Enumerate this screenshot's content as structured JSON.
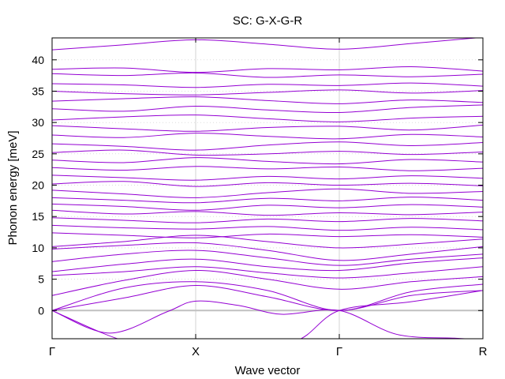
{
  "chart_data": {
    "type": "line",
    "title": "SC: G-X-G-R",
    "xlabel": "Wave vector",
    "ylabel": "Phonon energy [meV]",
    "ylim": [
      -4.5,
      43.5
    ],
    "y_ticks": [
      0,
      5,
      10,
      15,
      20,
      25,
      30,
      35,
      40
    ],
    "x_ticks": [
      "Γ",
      "X",
      "Γ",
      "R"
    ],
    "x_tick_positions": [
      0,
      1,
      2,
      3
    ],
    "xlim": [
      0,
      3
    ],
    "grid": true,
    "legend": "none",
    "line_color": "#9400d3",
    "zero_line_color": "#c0c0c0",
    "grid_color": "#c8c8c8",
    "series_note": "",
    "series": [
      {
        "x": [
          0,
          0.5,
          1,
          1.5,
          2,
          2.5,
          3
        ],
        "values": [
          41.6,
          42.4,
          43.2,
          42.5,
          41.7,
          42.6,
          43.6
        ]
      },
      {
        "x": [
          0,
          0.5,
          1,
          1.5,
          2,
          2.5,
          3
        ],
        "values": [
          38.5,
          38.7,
          38.0,
          38.6,
          38.4,
          38.9,
          38.2
        ]
      },
      {
        "x": [
          0,
          0.5,
          1,
          1.5,
          2,
          2.5,
          3
        ],
        "values": [
          37.8,
          37.5,
          37.9,
          37.2,
          37.6,
          37.3,
          37.7
        ]
      },
      {
        "x": [
          0,
          0.5,
          1,
          1.5,
          2,
          2.5,
          3
        ],
        "values": [
          36.2,
          36.0,
          35.6,
          36.1,
          35.9,
          36.3,
          35.8
        ]
      },
      {
        "x": [
          0,
          0.5,
          1,
          1.5,
          2,
          2.5,
          3
        ],
        "values": [
          35.0,
          34.6,
          34.4,
          34.8,
          35.2,
          34.7,
          35.1
        ]
      },
      {
        "x": [
          0,
          0.5,
          1,
          1.5,
          2,
          2.5,
          3
        ],
        "values": [
          33.4,
          33.8,
          34.1,
          33.5,
          33.0,
          33.6,
          33.2
        ]
      },
      {
        "x": [
          0,
          0.5,
          1,
          1.5,
          2,
          2.5,
          3
        ],
        "values": [
          32.2,
          31.8,
          32.6,
          32.0,
          31.6,
          32.4,
          32.8
        ]
      },
      {
        "x": [
          0,
          0.5,
          1,
          1.5,
          2,
          2.5,
          3
        ],
        "values": [
          30.4,
          30.9,
          31.2,
          30.6,
          30.1,
          30.7,
          31.0
        ]
      },
      {
        "x": [
          0,
          0.5,
          1,
          1.5,
          2,
          2.5,
          3
        ],
        "values": [
          29.5,
          29.0,
          28.6,
          29.2,
          29.4,
          28.8,
          29.6
        ]
      },
      {
        "x": [
          0,
          0.5,
          1,
          1.5,
          2,
          2.5,
          3
        ],
        "values": [
          28.0,
          27.6,
          28.3,
          27.8,
          27.4,
          28.1,
          27.7
        ]
      },
      {
        "x": [
          0,
          0.5,
          1,
          1.5,
          2,
          2.5,
          3
        ],
        "values": [
          26.6,
          26.2,
          25.6,
          26.4,
          26.9,
          26.3,
          26.8
        ]
      },
      {
        "x": [
          0,
          0.5,
          1,
          1.5,
          2,
          2.5,
          3
        ],
        "values": [
          25.2,
          25.6,
          24.8,
          25.0,
          25.4,
          24.9,
          25.3
        ]
      },
      {
        "x": [
          0,
          0.5,
          1,
          1.5,
          2,
          2.5,
          3
        ],
        "values": [
          24.0,
          23.6,
          24.4,
          23.8,
          23.4,
          24.1,
          23.7
        ]
      },
      {
        "x": [
          0,
          0.5,
          1,
          1.5,
          2,
          2.5,
          3
        ],
        "values": [
          22.8,
          22.4,
          23.0,
          22.6,
          22.9,
          22.3,
          22.7
        ]
      },
      {
        "x": [
          0,
          0.5,
          1,
          1.5,
          2,
          2.5,
          3
        ],
        "values": [
          21.6,
          21.2,
          20.8,
          21.4,
          21.0,
          21.5,
          21.1
        ]
      },
      {
        "x": [
          0,
          0.5,
          1,
          1.5,
          2,
          2.5,
          3
        ],
        "values": [
          20.2,
          20.6,
          19.8,
          20.4,
          20.0,
          20.3,
          19.9
        ]
      },
      {
        "x": [
          0,
          0.5,
          1,
          1.5,
          2,
          2.5,
          3
        ],
        "values": [
          19.2,
          18.6,
          18.0,
          18.8,
          19.4,
          18.7,
          19.0
        ]
      },
      {
        "x": [
          0,
          0.5,
          1,
          1.5,
          2,
          2.5,
          3
        ],
        "values": [
          18.0,
          17.6,
          17.2,
          17.9,
          17.5,
          18.1,
          17.6
        ]
      },
      {
        "x": [
          0,
          0.5,
          1,
          1.5,
          2,
          2.5,
          3
        ],
        "values": [
          17.0,
          16.6,
          16.0,
          16.8,
          16.4,
          16.9,
          16.5
        ]
      },
      {
        "x": [
          0,
          0.5,
          1,
          1.5,
          2,
          2.5,
          3
        ],
        "values": [
          16.0,
          15.4,
          15.8,
          15.2,
          15.6,
          15.3,
          15.7
        ]
      },
      {
        "x": [
          0,
          0.5,
          1,
          1.5,
          2,
          2.5,
          3
        ],
        "values": [
          14.8,
          14.4,
          14.0,
          14.6,
          14.2,
          14.7,
          14.3
        ]
      },
      {
        "x": [
          0,
          0.5,
          1,
          1.5,
          2,
          2.5,
          3
        ],
        "values": [
          13.6,
          13.2,
          13.0,
          13.4,
          12.8,
          13.3,
          12.9
        ]
      },
      {
        "x": [
          0,
          0.5,
          1,
          1.5,
          2,
          2.5,
          3
        ],
        "values": [
          12.4,
          12.0,
          11.6,
          12.2,
          11.8,
          12.1,
          11.7
        ]
      },
      {
        "x": [
          0,
          0.5,
          1,
          1.5,
          2,
          2.5,
          3
        ],
        "values": [
          10.2,
          11.0,
          12.0,
          11.0,
          10.0,
          10.6,
          11.4
        ]
      },
      {
        "x": [
          0,
          0.5,
          1,
          1.5,
          2,
          2.5,
          3
        ],
        "values": [
          9.8,
          10.4,
          10.8,
          9.6,
          8.0,
          9.0,
          10.2
        ]
      },
      {
        "x": [
          0,
          0.5,
          1,
          1.5,
          2,
          2.5,
          3
        ],
        "values": [
          7.8,
          9.0,
          9.6,
          8.4,
          7.2,
          8.2,
          9.0
        ]
      },
      {
        "x": [
          0,
          0.5,
          1,
          1.5,
          2,
          2.5,
          3
        ],
        "values": [
          6.2,
          7.4,
          8.2,
          7.0,
          6.4,
          7.6,
          8.4
        ]
      },
      {
        "x": [
          0,
          0.5,
          1,
          1.5,
          2,
          2.5,
          3
        ],
        "values": [
          5.6,
          6.2,
          7.0,
          6.0,
          5.2,
          6.0,
          7.0
        ]
      },
      {
        "x": [
          0,
          0.5,
          1,
          1.5,
          2,
          2.5,
          3
        ],
        "values": [
          2.4,
          4.8,
          6.4,
          5.0,
          3.4,
          4.6,
          5.4
        ]
      },
      {
        "x": [
          0,
          0.5,
          1,
          1.5,
          2,
          2.5,
          3
        ],
        "values": [
          0.0,
          3.6,
          4.6,
          3.2,
          0.0,
          3.0,
          4.2
        ]
      },
      {
        "x": [
          0,
          0.5,
          1,
          1.5,
          2,
          2.5,
          3
        ],
        "values": [
          0.0,
          2.0,
          4.0,
          2.2,
          0.0,
          2.4,
          3.2
        ]
      },
      {
        "x": [
          0,
          0.4,
          0.8,
          1,
          1.3,
          1.6,
          2,
          2.4,
          2.8,
          3
        ],
        "values": [
          0.0,
          -3.6,
          -0.2,
          1.5,
          0.8,
          -0.6,
          0.0,
          -3.8,
          -4.4,
          -4.6
        ]
      },
      {
        "x": [
          0,
          0.5,
          0.8,
          1,
          1.3,
          1.7,
          2,
          2.5,
          3
        ],
        "values": [
          0.0,
          -4.8,
          -4.6,
          -4.8,
          -4.8,
          -4.8,
          0.0,
          1.4,
          3.2
        ]
      }
    ]
  }
}
